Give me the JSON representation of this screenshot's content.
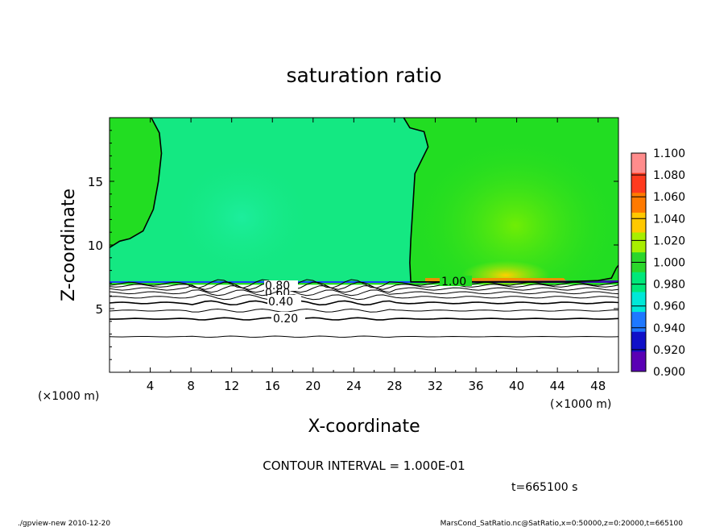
{
  "chart_data": {
    "type": "heatmap",
    "title": "saturation ratio",
    "xlabel": "X-coordinate",
    "ylabel": "Z-coordinate",
    "x_unit_left": "(×1000 m)",
    "x_unit_right": "(×1000 m)",
    "xlim": [
      0,
      50
    ],
    "ylim": [
      0,
      20
    ],
    "x_ticks": [
      "4",
      "8",
      "12",
      "16",
      "20",
      "24",
      "28",
      "32",
      "36",
      "40",
      "44",
      "48"
    ],
    "y_ticks": [
      "5",
      "10",
      "15"
    ],
    "colorbar": {
      "levels": [
        "1.100",
        "1.080",
        "1.060",
        "1.040",
        "1.020",
        "1.000",
        "0.980",
        "0.960",
        "0.940",
        "0.920",
        "0.900"
      ],
      "colors": [
        "#ff8c8c",
        "#ff3a1e",
        "#ff7a00",
        "#ffc800",
        "#a8ee00",
        "#2bd62b",
        "#00e87a",
        "#00e8d8",
        "#1e78ff",
        "#1010c8",
        "#5a00b4"
      ]
    },
    "regions": [
      {
        "range": "0.00–0.95",
        "color": "#ffffff",
        "z_top_km": 7.0
      },
      {
        "range": "0.98–1.00",
        "color": "#14e882",
        "z_from_km": 7.1
      },
      {
        "range": "1.00–1.02",
        "color": "#22dd22"
      },
      {
        "range": "1.02–1.04",
        "color": "#9af000"
      }
    ],
    "contour_labels": [
      "1.00",
      "0.80",
      "0.60",
      "0.40",
      "0.20"
    ],
    "contour_levels": [
      {
        "z_km": 2.8,
        "value": "0.10"
      },
      {
        "z_km": 4.2,
        "value": "0.20"
      },
      {
        "z_km": 4.85,
        "value": "0.30"
      },
      {
        "z_km": 5.45,
        "value": "0.40"
      },
      {
        "z_km": 5.9,
        "value": "0.50"
      },
      {
        "z_km": 6.25,
        "value": "0.60"
      },
      {
        "z_km": 6.55,
        "value": "0.70"
      },
      {
        "z_km": 6.8,
        "value": "0.80"
      },
      {
        "z_km": 6.95,
        "value": "0.90"
      }
    ],
    "contour_1_00": {
      "left": [
        [
          4.1,
          20
        ],
        [
          4.9,
          18.8
        ],
        [
          5.1,
          17.2
        ],
        [
          4.8,
          15.0
        ],
        [
          4.3,
          12.8
        ],
        [
          3.3,
          11.1
        ],
        [
          2.0,
          10.5
        ],
        [
          1.0,
          10.3
        ],
        [
          0,
          9.8
        ]
      ],
      "right": [
        [
          28.9,
          20
        ],
        [
          29.5,
          19.2
        ],
        [
          30.9,
          18.9
        ],
        [
          31.3,
          17.7
        ],
        [
          30.0,
          15.6
        ],
        [
          29.8,
          13.0
        ],
        [
          29.6,
          10.4
        ],
        [
          29.5,
          8.6
        ],
        [
          29.6,
          7.1
        ],
        [
          44.8,
          7.1
        ],
        [
          48.0,
          7.2
        ],
        [
          49.3,
          7.4
        ],
        [
          49.8,
          8.2
        ],
        [
          50,
          8.4
        ]
      ]
    },
    "footer": {
      "contour_interval": "CONTOUR INTERVAL = 1.000E-01",
      "time": "t=665100 s",
      "program": "./gpview-new   2010-12-20",
      "source": "MarsCond_SatRatio.nc@SatRatio,x=0:50000,z=0:20000,t=665100"
    }
  }
}
